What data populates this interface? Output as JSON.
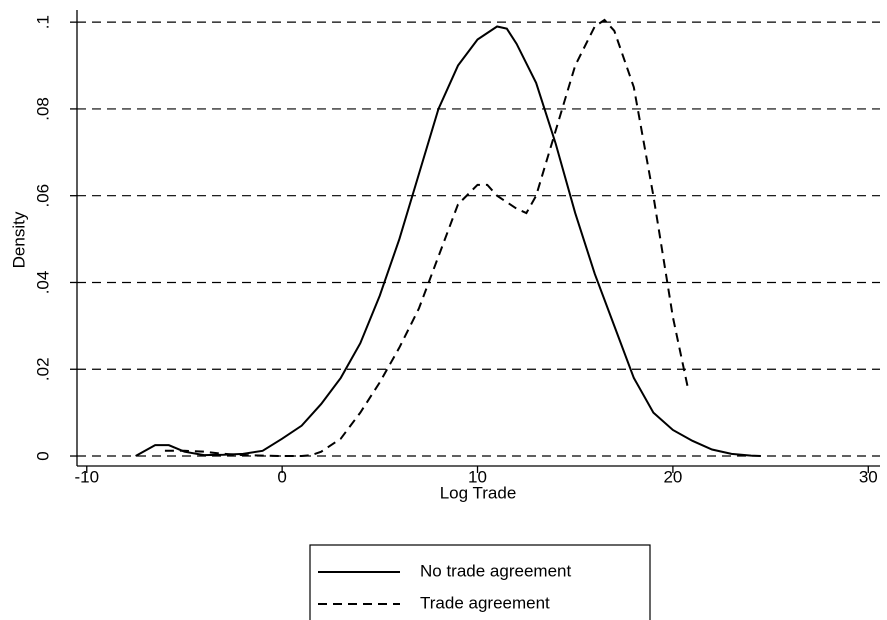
{
  "chart_data": {
    "type": "line",
    "xlabel": "Log Trade",
    "ylabel": "Density",
    "xlim": [
      -10.5,
      30.6
    ],
    "ylim": [
      -0.0023,
      0.1028
    ],
    "xticks": [
      -10,
      0,
      10,
      20,
      30
    ],
    "yticks": [
      0,
      {
        "value": 0.02,
        "label": ".02"
      },
      {
        "value": 0.04,
        "label": ".04"
      },
      {
        "value": 0.06,
        "label": ".06"
      },
      {
        "value": 0.08,
        "label": ".08"
      },
      {
        "value": 0.1,
        "label": ".1"
      }
    ],
    "grid": true,
    "legend": "bottom",
    "series": [
      {
        "name": "No trade agreement",
        "color": "#000000",
        "dash": "solid",
        "x": [
          -7.5,
          -6.5,
          -5.8,
          -5,
          -4,
          -3,
          -2,
          -1,
          0,
          1,
          2,
          3,
          4,
          5,
          6,
          7,
          8,
          9,
          10,
          11,
          11.5,
          12,
          13,
          14,
          15,
          16,
          17,
          18,
          19,
          20,
          21,
          22,
          23,
          24,
          24.5
        ],
        "values": [
          0,
          0.0025,
          0.0025,
          0.001,
          0.0002,
          0.0003,
          0.0005,
          0.0012,
          0.004,
          0.007,
          0.012,
          0.018,
          0.026,
          0.037,
          0.05,
          0.065,
          0.08,
          0.09,
          0.096,
          0.099,
          0.0985,
          0.095,
          0.086,
          0.072,
          0.056,
          0.042,
          0.03,
          0.018,
          0.01,
          0.006,
          0.0035,
          0.0015,
          0.0005,
          0.0001,
          0
        ]
      },
      {
        "name": "Trade agreement",
        "color": "#000000",
        "dash": "dashed",
        "x": [
          -6,
          -5,
          -4,
          -3,
          -2,
          -1,
          0,
          1,
          1.5,
          2,
          3,
          4,
          5,
          6,
          7,
          8,
          9,
          10,
          10.5,
          11,
          12,
          12.5,
          13,
          14,
          15,
          16,
          16.5,
          17,
          18,
          19,
          20,
          20.8
        ],
        "values": [
          0.0012,
          0.0012,
          0.001,
          0.0005,
          0.0002,
          0.0001,
          0,
          0,
          0.0002,
          0.001,
          0.004,
          0.01,
          0.017,
          0.025,
          0.034,
          0.046,
          0.058,
          0.0625,
          0.0625,
          0.06,
          0.057,
          0.056,
          0.06,
          0.075,
          0.09,
          0.099,
          0.1005,
          0.098,
          0.085,
          0.06,
          0.032,
          0.015
        ]
      }
    ]
  }
}
